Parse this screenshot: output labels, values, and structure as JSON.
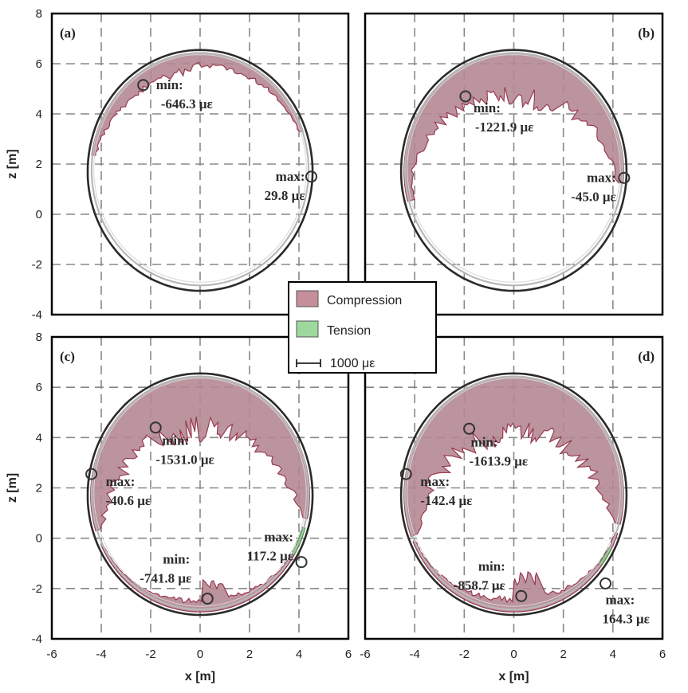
{
  "chart_data": {
    "type": "line",
    "x_axis": {
      "label": "x [m]",
      "range": [
        -6,
        6
      ],
      "ticks": [
        "-6",
        "-4",
        "-2",
        "0",
        "2",
        "4",
        "6"
      ]
    },
    "y_axis": {
      "label": "z [m]",
      "range": [
        -4,
        8
      ],
      "ticks": [
        "-4",
        "-2",
        "0",
        "2",
        "4",
        "6",
        "8"
      ]
    },
    "grid": "dashed",
    "legend": {
      "placement": "center",
      "entries": [
        {
          "label": "Compression",
          "color": "#c48e9a"
        },
        {
          "label": "Tension",
          "color": "#9dd89d"
        }
      ],
      "scale_label": "1000 με"
    },
    "colors": {
      "compression_fill": "#b48892",
      "compression_edge": "#9a3a50",
      "tension_fill": "#5cc45c",
      "lining": "#2a2a2a",
      "inner_ring": "#b8b8b8"
    },
    "panels": [
      {
        "id": "a",
        "label": "(a)",
        "points": [
          {
            "kind": "min",
            "x": -2.3,
            "z": 5.15,
            "name": "min:",
            "value": "-646.3 με"
          },
          {
            "kind": "max",
            "x": 4.5,
            "z": 1.5,
            "name": "max:",
            "value": "29.8 με"
          }
        ]
      },
      {
        "id": "b",
        "label": "(b)",
        "points": [
          {
            "kind": "min",
            "x": -1.95,
            "z": 4.7,
            "name": "min:",
            "value": "-1221.9 με"
          },
          {
            "kind": "max",
            "x": 4.45,
            "z": 1.45,
            "name": "max:",
            "value": "-45.0 με"
          }
        ]
      },
      {
        "id": "c",
        "label": "(c)",
        "points": [
          {
            "kind": "min",
            "x": -1.8,
            "z": 4.4,
            "name": "min:",
            "value": "-1531.0 με"
          },
          {
            "kind": "max",
            "x": -4.4,
            "z": 2.55,
            "name": "max:",
            "value": "-40.6 με"
          },
          {
            "kind": "max",
            "x": 4.1,
            "z": -0.95,
            "name": "max:",
            "value": "117.2 με"
          },
          {
            "kind": "min",
            "x": 0.3,
            "z": -2.4,
            "name": "min:",
            "value": "-741.8 με"
          }
        ]
      },
      {
        "id": "d",
        "label": "(d)",
        "points": [
          {
            "kind": "min",
            "x": -1.8,
            "z": 4.35,
            "name": "min:",
            "value": "-1613.9 με"
          },
          {
            "kind": "max",
            "x": -4.35,
            "z": 2.55,
            "name": "max:",
            "value": "-142.4 με"
          },
          {
            "kind": "min",
            "x": 0.3,
            "z": -2.3,
            "name": "min:",
            "value": "-858.7 με"
          },
          {
            "kind": "max",
            "x": 3.7,
            "z": -1.8,
            "name": "max:",
            "value": "164.3 με"
          }
        ]
      }
    ]
  }
}
